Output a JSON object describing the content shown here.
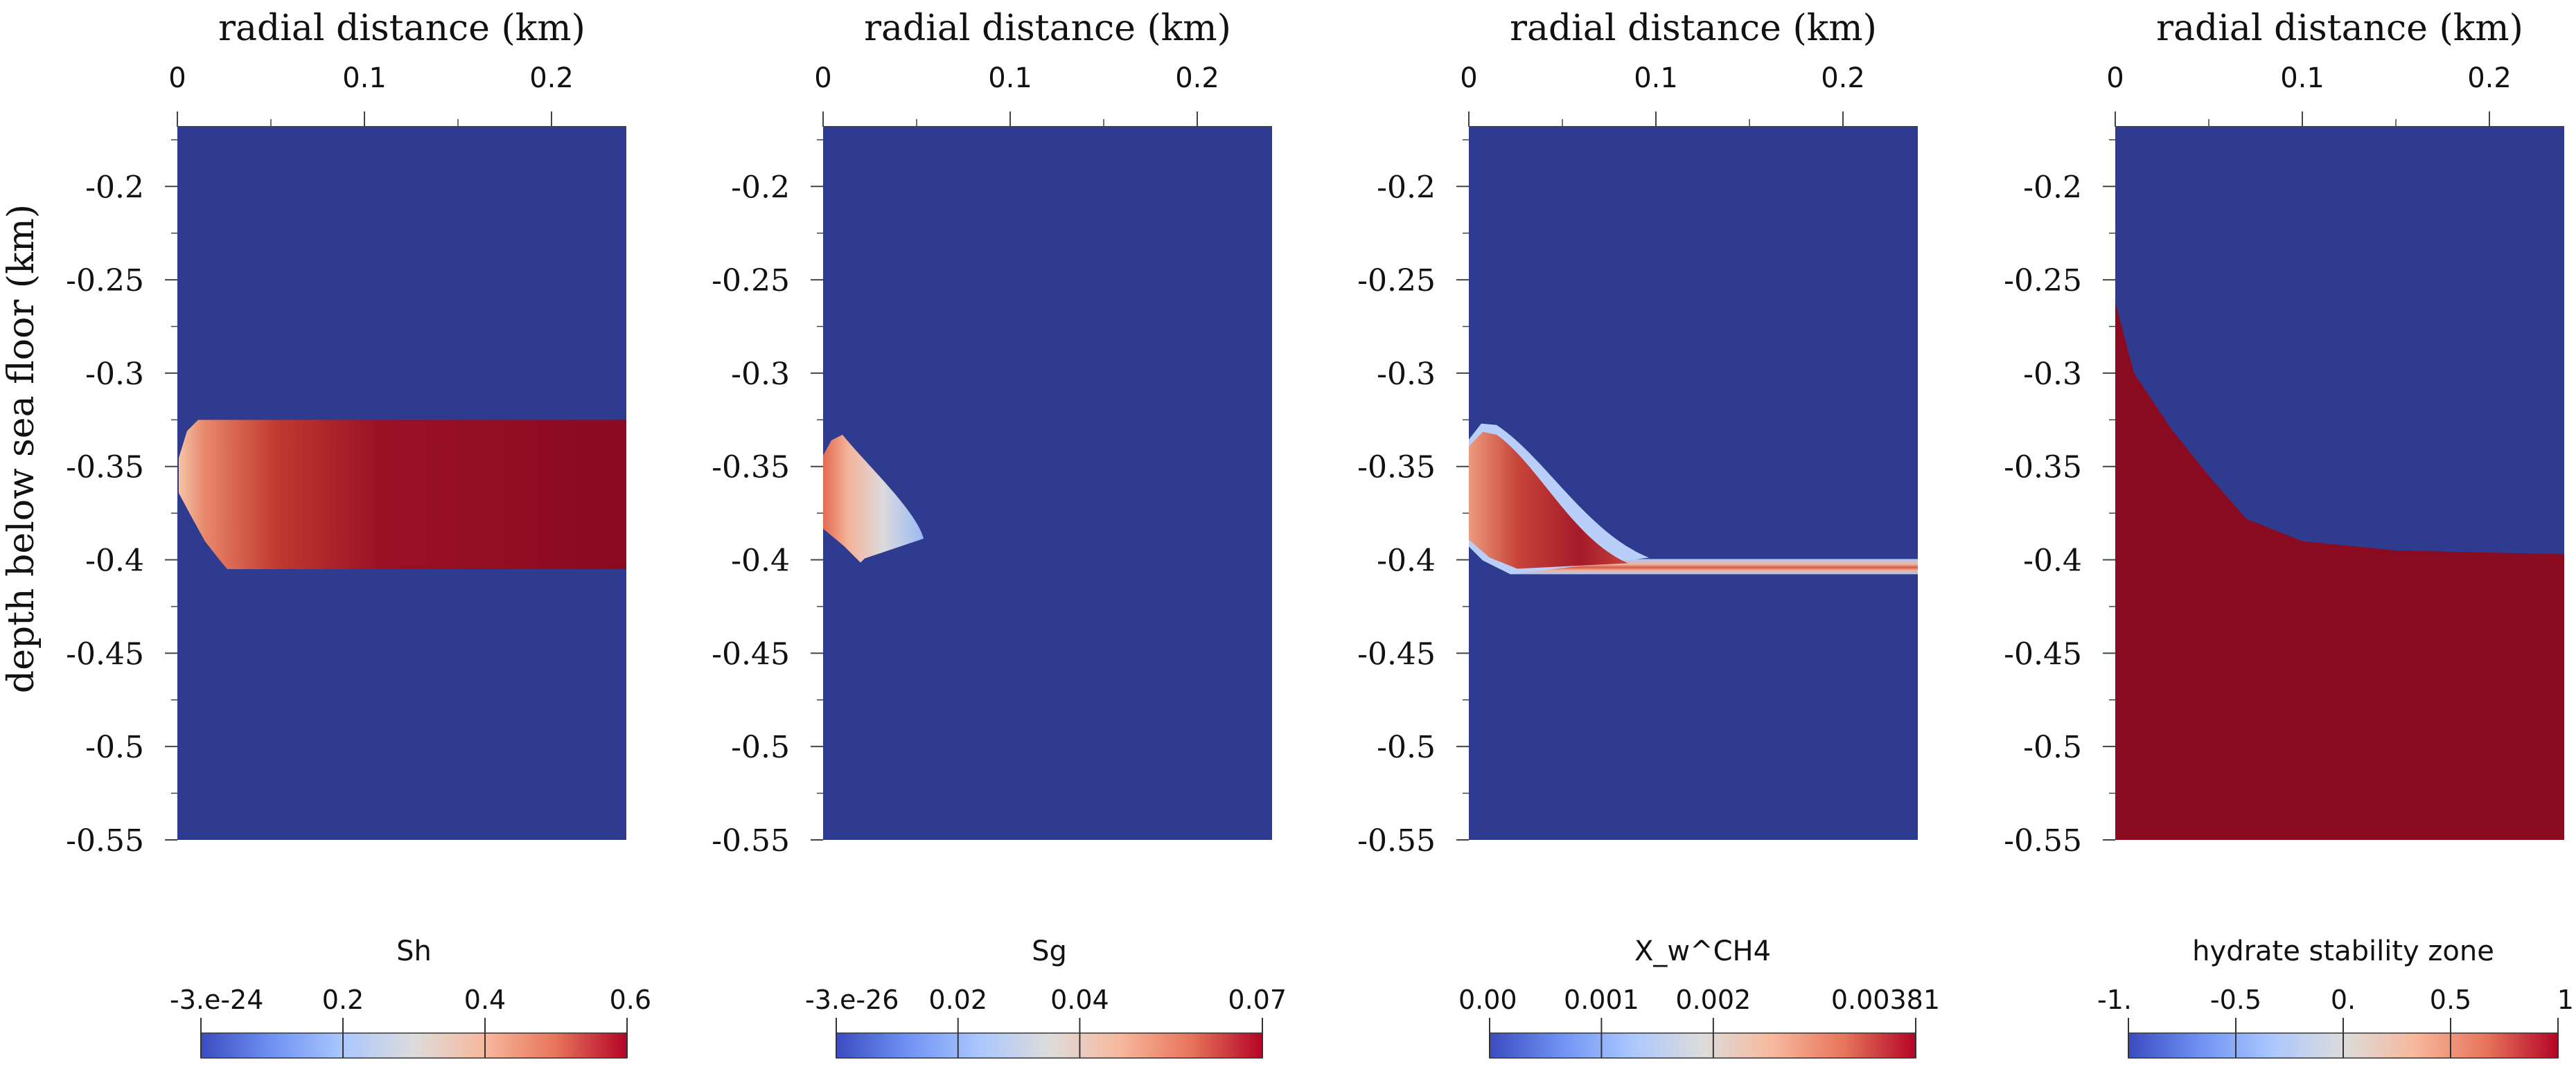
{
  "colors": {
    "background_blue": "#2e3b8f",
    "zone_red": "#8a0a20",
    "axis_line": "#444444",
    "colormap": [
      "#3b4cc0",
      "#6f92f3",
      "#aac7fd",
      "#dddcdc",
      "#f7b89c",
      "#e7745b",
      "#b40426"
    ]
  },
  "chart_data": [
    {
      "type": "heatmap",
      "panel": "Sh",
      "x_label": "radial distance (km)",
      "y_label": "depth below sea floor (km)",
      "x_ticks": [
        0,
        0.1,
        0.2
      ],
      "x_tick_labels": [
        "0",
        "0.1",
        "0.2"
      ],
      "x_range": [
        0,
        0.24
      ],
      "y_ticks": [
        -0.2,
        -0.25,
        -0.3,
        -0.35,
        -0.4,
        -0.45,
        -0.5,
        -0.55
      ],
      "y_tick_labels": [
        "-0.2",
        "-0.25",
        "-0.3",
        "-0.35",
        "-0.4",
        "-0.45",
        "-0.5",
        "-0.55"
      ],
      "y_range": [
        -0.55,
        -0.168
      ],
      "field_description": "hydrate saturation layer between about -0.325 and -0.405 km depth, saturated (~0.6) across radius with lighter values near the axis",
      "layer_top": -0.325,
      "layer_bottom": -0.405,
      "colorbar": {
        "title": "Sh",
        "min": -3e-24,
        "max": 0.6,
        "ticks": [
          -3e-24,
          0.2,
          0.4,
          0.6
        ],
        "tick_labels": [
          "-3.e-24",
          "0.2",
          "0.4",
          "0.6"
        ]
      }
    },
    {
      "type": "heatmap",
      "panel": "Sg",
      "x_label": "radial distance (km)",
      "x_ticks": [
        0,
        0.1,
        0.2
      ],
      "x_tick_labels": [
        "0",
        "0.1",
        "0.2"
      ],
      "x_range": [
        0,
        0.24
      ],
      "y_ticks": [
        -0.2,
        -0.25,
        -0.3,
        -0.35,
        -0.4,
        -0.45,
        -0.5,
        -0.55
      ],
      "y_tick_labels": [
        "-0.2",
        "-0.25",
        "-0.3",
        "-0.35",
        "-0.4",
        "-0.45",
        "-0.5",
        "-0.55"
      ],
      "y_range": [
        -0.55,
        -0.168
      ],
      "field_description": "small gas saturation plume near the axis between about -0.33 and -0.40 km depth, extending to ~0.05 km radius",
      "plume_top": -0.333,
      "plume_bottom": -0.4,
      "plume_max_radius": 0.05,
      "colorbar": {
        "title": "Sg",
        "min": -3e-26,
        "max": 0.07,
        "ticks": [
          -3e-26,
          0.02,
          0.04,
          0.07
        ],
        "tick_labels": [
          "-3.e-26",
          "0.02",
          "0.04",
          "0.07"
        ]
      }
    },
    {
      "type": "heatmap",
      "panel": "X_w^CH4",
      "x_label": "radial distance (km)",
      "x_ticks": [
        0,
        0.1,
        0.2
      ],
      "x_tick_labels": [
        "0",
        "0.1",
        "0.2"
      ],
      "x_range": [
        0,
        0.24
      ],
      "y_ticks": [
        -0.2,
        -0.25,
        -0.3,
        -0.35,
        -0.4,
        -0.45,
        -0.5,
        -0.55
      ],
      "y_tick_labels": [
        "-0.2",
        "-0.25",
        "-0.3",
        "-0.35",
        "-0.4",
        "-0.45",
        "-0.5",
        "-0.55"
      ],
      "y_range": [
        -0.55,
        -0.168
      ],
      "field_description": "dissolved methane plume near the axis between about -0.33 and -0.405 km, with a thin band along -0.405 km extending to full radius",
      "plume_top": -0.33,
      "band_depth": -0.404,
      "colorbar": {
        "title": "X_w^CH4",
        "min": 0.0,
        "max": 0.00381,
        "ticks": [
          0.0,
          0.001,
          0.002,
          0.00381
        ],
        "tick_labels": [
          "0.00",
          "0.001",
          "0.002",
          "0.00381"
        ]
      }
    },
    {
      "type": "heatmap",
      "panel": "hydrate stability zone",
      "x_label": "radial distance (km)",
      "x_ticks": [
        0,
        0.1,
        0.2
      ],
      "x_tick_labels": [
        "0",
        "0.1",
        "0.2"
      ],
      "x_range": [
        0,
        0.24
      ],
      "y_ticks": [
        -0.2,
        -0.25,
        -0.3,
        -0.35,
        -0.4,
        -0.45,
        -0.5,
        -0.55
      ],
      "y_tick_labels": [
        "-0.2",
        "-0.25",
        "-0.3",
        "-0.35",
        "-0.4",
        "-0.45",
        "-0.5",
        "-0.55"
      ],
      "y_range": [
        -0.55,
        -0.168
      ],
      "field_description": "stability boundary: value 1 below a curve rising from -0.398 km at full radius to -0.26 km at the axis; value -1 above",
      "boundary_points": [
        [
          0,
          -0.262
        ],
        [
          0.01,
          -0.3
        ],
        [
          0.03,
          -0.33
        ],
        [
          0.05,
          -0.355
        ],
        [
          0.07,
          -0.378
        ],
        [
          0.1,
          -0.39
        ],
        [
          0.15,
          -0.395
        ],
        [
          0.24,
          -0.397
        ]
      ],
      "colorbar": {
        "title": "hydrate stability zone",
        "min": -1,
        "max": 1,
        "ticks": [
          -1,
          -0.5,
          0,
          0.5,
          1
        ],
        "tick_labels": [
          "-1.",
          "-0.5",
          "0.",
          "0.5",
          "1."
        ]
      }
    }
  ]
}
